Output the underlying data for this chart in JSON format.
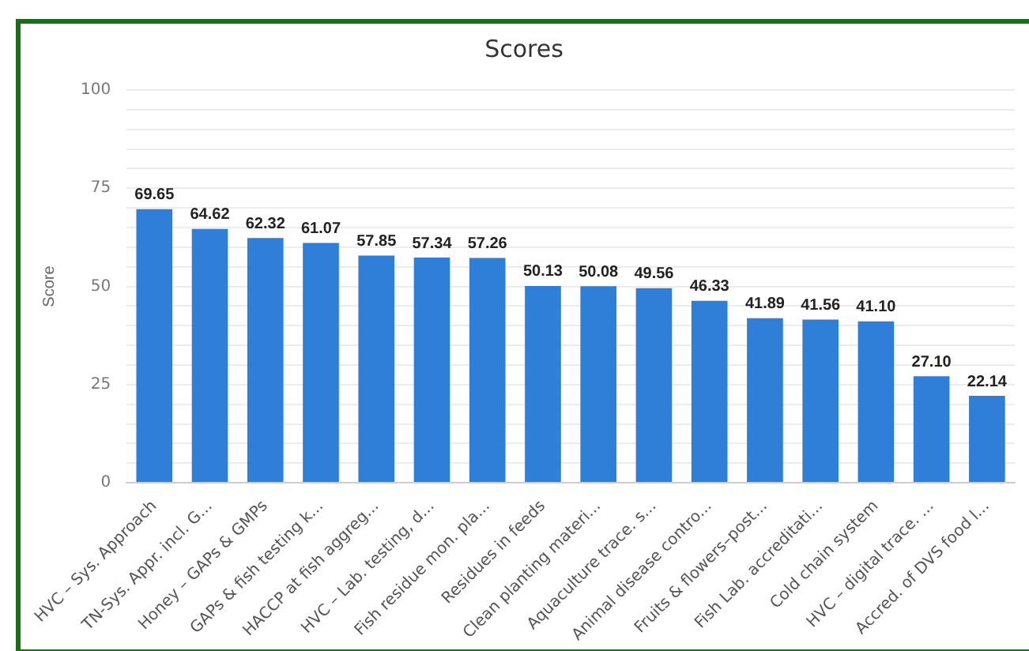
{
  "chart_data": {
    "type": "bar",
    "title": "Scores",
    "ylabel": "Score",
    "categories": [
      "HVC – Sys. Approach",
      "TN-Sys. Appr. incl. G...",
      "Honey – GAPs & GMPs",
      "GAPs & fish testing k...",
      "HACCP at fish aggreg...",
      "HVC – Lab. testing, d...",
      "Fish residue mon. pla...",
      "Residues in feeds",
      "Clean planting materi...",
      "Aquaculture trace. s...",
      "Animal disease contro...",
      "Fruits & flowers–post...",
      "Fish Lab. accreditati...",
      "Cold chain system",
      "HVC – digital trace. ...",
      "Accred. of DVS food l..."
    ],
    "values": [
      69.65,
      64.62,
      62.32,
      61.07,
      57.85,
      57.34,
      57.26,
      50.13,
      50.08,
      49.56,
      46.33,
      41.89,
      41.56,
      41.1,
      27.1,
      22.14
    ],
    "value_labels": [
      "69.65",
      "64.62",
      "62.32",
      "61.07",
      "57.85",
      "57.34",
      "57.26",
      "50.13",
      "50.08",
      "49.56",
      "46.33",
      "41.89",
      "41.56",
      "41.10",
      "27.10",
      "22.14"
    ],
    "color": "#2f7ed8",
    "ylim": [
      0,
      100
    ],
    "yticks": [
      0,
      {
        "value": 5,
        "label": null
      },
      {
        "value": 10,
        "label": null
      },
      {
        "value": 15,
        "label": null
      },
      {
        "value": 20,
        "label": null
      },
      25,
      {
        "value": 30,
        "label": null
      },
      {
        "value": 35,
        "label": null
      },
      {
        "value": 40,
        "label": null
      },
      {
        "value": 45,
        "label": null
      },
      50,
      {
        "value": 55,
        "label": null
      },
      {
        "value": 60,
        "label": null
      },
      {
        "value": 65,
        "label": null
      },
      {
        "value": 70,
        "label": null
      },
      75,
      {
        "value": 80,
        "label": null
      },
      {
        "value": 85,
        "label": null
      },
      {
        "value": 90,
        "label": null
      },
      {
        "value": 95,
        "label": null
      },
      100
    ],
    "grid": "y",
    "legend": false
  }
}
